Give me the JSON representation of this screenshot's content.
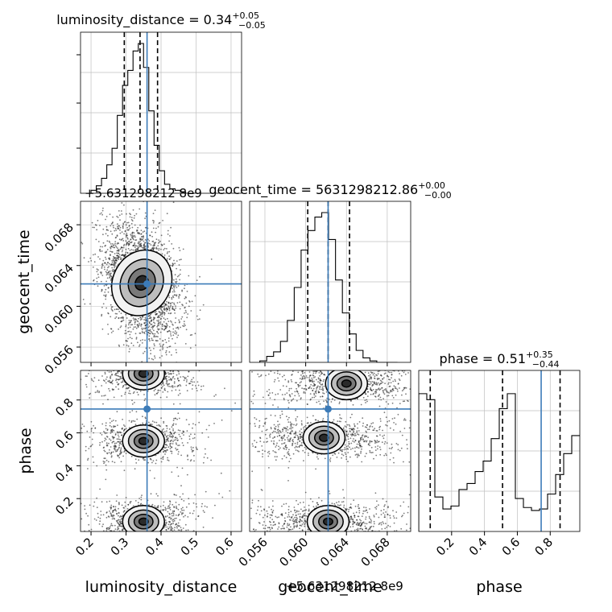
{
  "chart_data": {
    "type": "corner",
    "parameters": [
      "luminosity_distance",
      "geocent_time",
      "phase"
    ],
    "titles": {
      "luminosity_distance": {
        "prefix": "luminosity_distance = ",
        "value": "0.34",
        "plus": "+0.05",
        "minus": "−0.05"
      },
      "geocent_time": {
        "prefix": "geocent_time = ",
        "value": "5631298212.86",
        "plus": "+0.00",
        "minus": "−0.00"
      },
      "phase": {
        "prefix": "phase = ",
        "value": "0.51",
        "plus": "+0.35",
        "minus": "−0.44"
      }
    },
    "offset_label": "+5.631298212 8e9",
    "offset_label_top": "+5.631298212 8e9",
    "axis_labels": {
      "x": [
        "luminosity_distance",
        "geocent_time",
        "phase"
      ],
      "y": [
        "geocent_time",
        "phase"
      ]
    },
    "ticks": {
      "luminosity_distance": {
        "values": [
          0.2,
          0.3,
          0.4,
          0.5,
          0.6
        ],
        "labels": [
          "0.2",
          "0.3",
          "0.4",
          "0.5",
          "0.6"
        ],
        "range": [
          0.17,
          0.63
        ]
      },
      "geocent_time": {
        "values": [
          0.056,
          0.06,
          0.064,
          0.068
        ],
        "labels": [
          "0.056",
          "0.060",
          "0.064",
          "0.068"
        ],
        "range": [
          0.0545,
          0.0703
        ]
      },
      "phase": {
        "values": [
          0.2,
          0.4,
          0.6,
          0.8
        ],
        "labels": [
          "0.2",
          "0.4",
          "0.6",
          "0.8"
        ],
        "range": [
          0.0,
          0.98
        ]
      }
    },
    "injection": {
      "luminosity_distance": 0.36,
      "geocent_time": 0.0622,
      "phase": 0.745
    },
    "quantiles": {
      "luminosity_distance": [
        0.295,
        0.34,
        0.39
      ],
      "geocent_time": [
        0.0602,
        0.0622,
        0.0643
      ],
      "phase": [
        0.07,
        0.51,
        0.86
      ]
    },
    "hist_1d": {
      "luminosity_distance": {
        "edges_range": [
          0.2,
          0.5
        ],
        "bins": 20,
        "counts": [
          0.02,
          0.05,
          0.1,
          0.19,
          0.3,
          0.52,
          0.72,
          0.82,
          0.95,
          1.0,
          0.84,
          0.55,
          0.32,
          0.15,
          0.06,
          0.03,
          0.02,
          0.01,
          0.0,
          0.0
        ]
      },
      "geocent_time": {
        "edges_range": [
          0.0555,
          0.069
        ],
        "bins": 20,
        "counts": [
          0.01,
          0.04,
          0.07,
          0.14,
          0.28,
          0.5,
          0.75,
          0.88,
          0.97,
          1.0,
          0.82,
          0.55,
          0.33,
          0.19,
          0.08,
          0.03,
          0.01,
          0.0,
          0.0,
          0.0
        ]
      },
      "phase": {
        "edges_range": [
          0.0,
          0.98
        ],
        "bins": 20,
        "counts": [
          0.92,
          0.88,
          0.23,
          0.15,
          0.17,
          0.28,
          0.32,
          0.4,
          0.47,
          0.62,
          0.82,
          0.92,
          0.22,
          0.16,
          0.14,
          0.15,
          0.25,
          0.38,
          0.52,
          0.64
        ]
      }
    },
    "density_2d": {
      "geocent_time_vs_luminosity_distance": {
        "center": [
          0.345,
          0.0623
        ],
        "spread": [
          0.055,
          0.003
        ],
        "correlation": -0.35
      },
      "phase_vs_luminosity_distance": {
        "modes": [
          [
            0.35,
            0.55
          ],
          [
            0.35,
            0.06
          ],
          [
            0.35,
            0.96
          ]
        ],
        "spread": [
          0.05,
          0.12
        ]
      },
      "phase_vs_geocent_time": {
        "modes": [
          [
            0.0618,
            0.57
          ],
          [
            0.0622,
            0.06
          ],
          [
            0.064,
            0.9
          ]
        ],
        "spread": [
          0.0028,
          0.12
        ]
      }
    },
    "colors": {
      "injection": "#3c7bb8",
      "hist": "#000000",
      "grid": "#bfbfbf"
    },
    "grid": true
  }
}
